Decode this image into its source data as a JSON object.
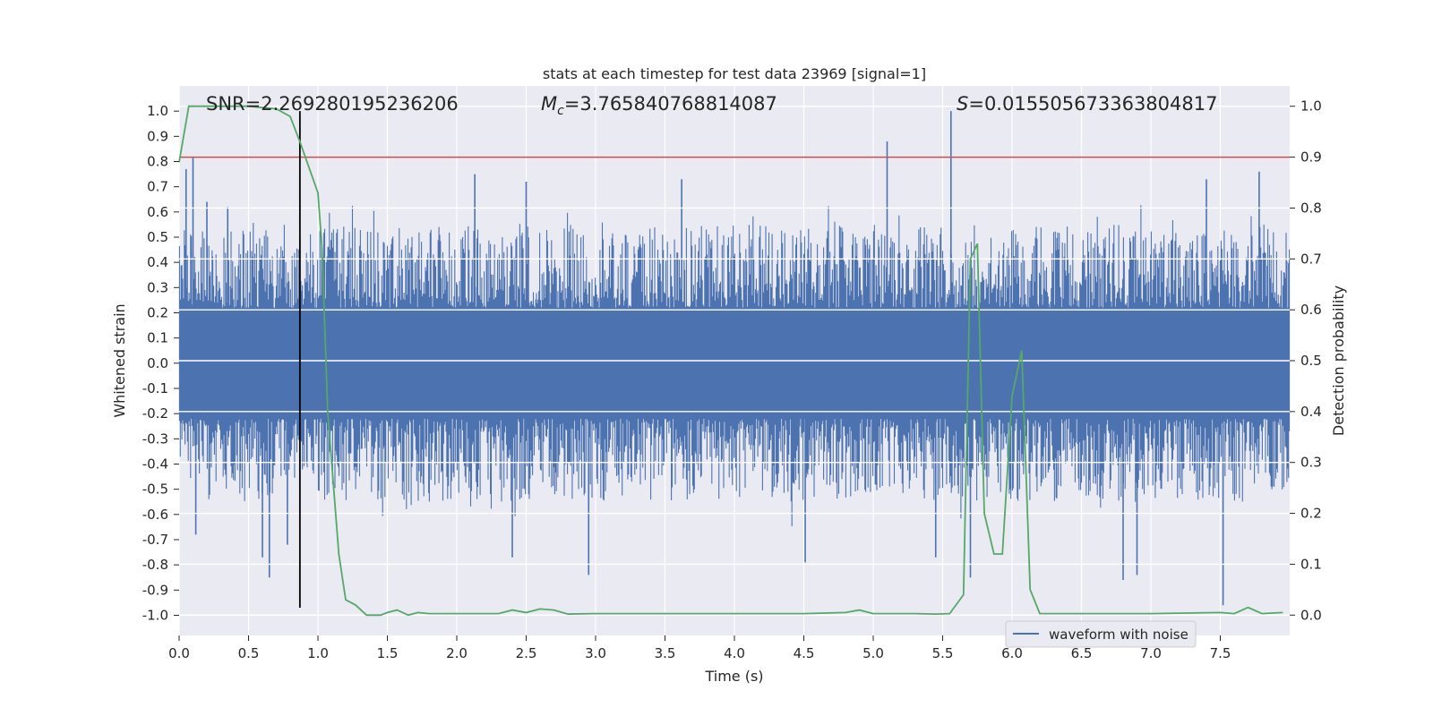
{
  "chart_data": {
    "type": "line",
    "title": "stats at each timestep for test data 23969 [signal=1]",
    "xlabel": "Time (s)",
    "ylabel_left": "Whitened strain",
    "ylabel_right": "Detection probability",
    "xlim": [
      0,
      8
    ],
    "ylim_left": [
      -1.08,
      1.1
    ],
    "ylim_right": [
      -0.04,
      1.04
    ],
    "x_ticks": [
      "0.0",
      "0.5",
      "1.0",
      "1.5",
      "2.0",
      "2.5",
      "3.0",
      "3.5",
      "4.0",
      "4.5",
      "5.0",
      "5.5",
      "6.0",
      "6.5",
      "7.0",
      "7.5"
    ],
    "y_ticks_left": [
      "1.0",
      "0.9",
      "0.8",
      "0.7",
      "0.6",
      "0.5",
      "0.4",
      "0.3",
      "0.2",
      "0.1",
      "0.0",
      "-0.1",
      "-0.2",
      "-0.3",
      "-0.4",
      "-0.5",
      "-0.6",
      "-0.7",
      "-0.8",
      "-0.9",
      "-1.0"
    ],
    "y_ticks_right": [
      "1.0",
      "0.9",
      "0.8",
      "0.7",
      "0.6",
      "0.5",
      "0.4",
      "0.3",
      "0.2",
      "0.1",
      "0.0"
    ],
    "annotations": {
      "snr": "SNR=2.269280195236206",
      "mc_symbol": "M",
      "mc_sub": "c",
      "mc_value": "=3.765840768814087",
      "s_symbol": "S",
      "s_value": "=0.015505673363804817"
    },
    "legend": {
      "label": "waveform with noise",
      "placement": "lower-right"
    },
    "threshold": {
      "value": 0.9,
      "axis": "right",
      "color": "#c44e52"
    },
    "event_marker_x": 0.87,
    "waveform": {
      "name": "waveform with noise",
      "color": "#4c72b0",
      "band_abs": 0.22,
      "envelope_typical": 0.55,
      "spikes": [
        {
          "x": 0.05,
          "y": 0.77
        },
        {
          "x": 0.1,
          "y": 0.82
        },
        {
          "x": 0.2,
          "y": 0.64
        },
        {
          "x": 0.35,
          "y": 0.62
        },
        {
          "x": 0.65,
          "y": -0.85
        },
        {
          "x": 0.6,
          "y": -0.77
        },
        {
          "x": 0.12,
          "y": -0.68
        },
        {
          "x": 0.78,
          "y": -0.72
        },
        {
          "x": 2.13,
          "y": 0.75
        },
        {
          "x": 2.5,
          "y": 0.72
        },
        {
          "x": 2.4,
          "y": -0.77
        },
        {
          "x": 2.95,
          "y": -0.84
        },
        {
          "x": 3.62,
          "y": 0.73
        },
        {
          "x": 4.51,
          "y": -0.79
        },
        {
          "x": 5.1,
          "y": 0.88
        },
        {
          "x": 5.56,
          "y": 1.0
        },
        {
          "x": 5.45,
          "y": -0.77
        },
        {
          "x": 5.7,
          "y": -0.85
        },
        {
          "x": 6.8,
          "y": -0.86
        },
        {
          "x": 6.9,
          "y": -0.84
        },
        {
          "x": 7.52,
          "y": -0.96
        },
        {
          "x": 7.78,
          "y": 0.76
        },
        {
          "x": 7.4,
          "y": 0.73
        }
      ]
    },
    "probability": {
      "name": "detection probability",
      "color": "#55a868",
      "x": [
        0.0,
        0.07,
        0.15,
        0.3,
        0.5,
        0.7,
        0.8,
        0.87,
        1.0,
        1.03,
        1.07,
        1.15,
        1.2,
        1.27,
        1.35,
        1.45,
        1.5,
        1.57,
        1.65,
        1.72,
        1.8,
        2.0,
        2.3,
        2.4,
        2.5,
        2.6,
        2.7,
        2.8,
        3.0,
        3.2,
        3.5,
        4.0,
        4.5,
        4.8,
        4.9,
        5.0,
        5.3,
        5.45,
        5.55,
        5.65,
        5.7,
        5.75,
        5.8,
        5.87,
        5.93,
        6.0,
        6.07,
        6.13,
        6.2,
        6.5,
        7.0,
        7.5,
        7.6,
        7.7,
        7.8,
        7.95
      ],
      "y": [
        0.89,
        1.0,
        1.0,
        1.0,
        1.0,
        0.995,
        0.98,
        0.93,
        0.83,
        0.72,
        0.4,
        0.12,
        0.03,
        0.02,
        0.0,
        0.0,
        0.005,
        0.01,
        0.0,
        0.005,
        0.003,
        0.003,
        0.003,
        0.01,
        0.005,
        0.012,
        0.01,
        0.002,
        0.003,
        0.003,
        0.003,
        0.003,
        0.003,
        0.005,
        0.01,
        0.003,
        0.003,
        0.002,
        0.003,
        0.04,
        0.7,
        0.73,
        0.2,
        0.12,
        0.12,
        0.43,
        0.52,
        0.05,
        0.003,
        0.003,
        0.003,
        0.005,
        0.003,
        0.015,
        0.003,
        0.005
      ]
    }
  }
}
